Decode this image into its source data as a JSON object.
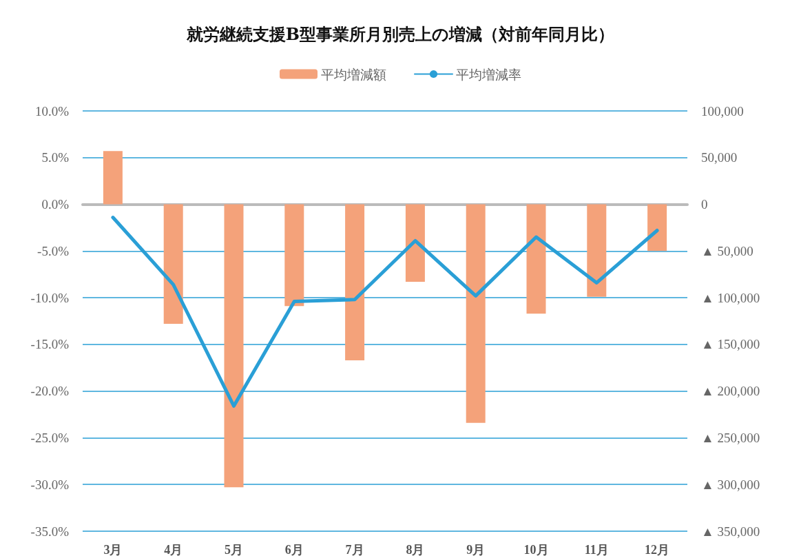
{
  "chart_data": {
    "type": "bar",
    "title": "就労継続支援B型事業所月別売上の増減（対前年同月比）",
    "categories": [
      "3月",
      "4月",
      "5月",
      "6月",
      "7月",
      "8月",
      "9月",
      "10月",
      "11月",
      "12月"
    ],
    "series": [
      {
        "name": "平均増減額",
        "axis": "y2",
        "color": "#f4a27a",
        "values": [
          57000,
          -128000,
          -303000,
          -109000,
          -167000,
          -83000,
          -234000,
          -117000,
          -99000,
          -50000
        ]
      },
      {
        "name": "平均増減率",
        "type": "line",
        "color": "#2a9fd6",
        "values": [
          -1.4,
          -8.6,
          -21.6,
          -10.4,
          -10.2,
          -3.9,
          -9.8,
          -3.5,
          -8.4,
          -2.8
        ]
      }
    ],
    "ylim": [
      -35,
      10
    ],
    "yticks": [
      {
        "value": 10,
        "label": "10.0%"
      },
      {
        "value": 5,
        "label": "5.0%"
      },
      {
        "value": 0,
        "label": "0.0%"
      },
      {
        "value": -5,
        "label": "-5.0%"
      },
      {
        "value": -10,
        "label": "-10.0%"
      },
      {
        "value": -15,
        "label": "-15.0%"
      },
      {
        "value": -20,
        "label": "-20.0%"
      },
      {
        "value": -25,
        "label": "-25.0%"
      },
      {
        "value": -30,
        "label": "-30.0%"
      },
      {
        "value": -35,
        "label": "-35.0%"
      }
    ],
    "y2lim": [
      -350000,
      100000
    ],
    "y2ticks": [
      {
        "value": 100000,
        "label": "100,000"
      },
      {
        "value": 50000,
        "label": "50,000"
      },
      0,
      {
        "value": -50000,
        "label": "▲ 50,000"
      },
      {
        "value": -100000,
        "label": "▲ 100,000"
      },
      {
        "value": -150000,
        "label": "▲ 150,000"
      },
      {
        "value": -200000,
        "label": "▲ 200,000"
      },
      {
        "value": -250000,
        "label": "▲ 250,000"
      },
      {
        "value": -300000,
        "label": "▲ 300,000"
      },
      {
        "value": -350000,
        "label": "▲ 350,000"
      }
    ],
    "grid": "y",
    "legend": "top",
    "marker": "none",
    "line_style": "solid"
  }
}
